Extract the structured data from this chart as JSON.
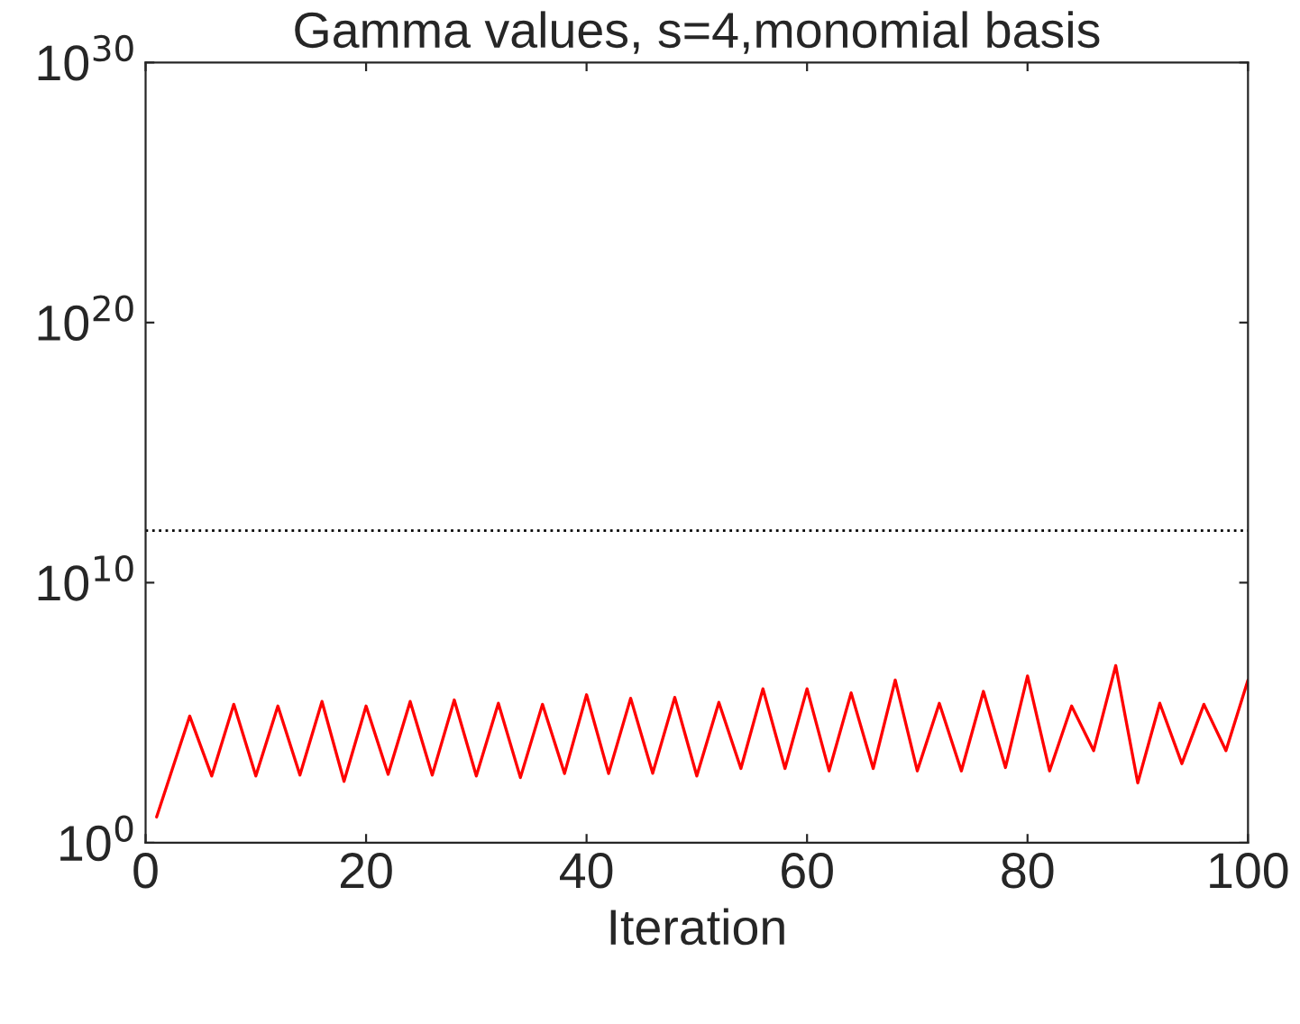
{
  "chart_data": {
    "type": "line",
    "title": "Gamma values, s=4,monomial basis",
    "xlabel": "Iteration",
    "x": [
      1,
      4,
      6,
      8,
      10,
      12,
      14,
      16,
      18,
      20,
      22,
      24,
      26,
      28,
      30,
      32,
      34,
      36,
      38,
      40,
      42,
      44,
      46,
      48,
      50,
      52,
      54,
      56,
      58,
      60,
      62,
      64,
      66,
      68,
      70,
      72,
      74,
      76,
      78,
      80,
      82,
      84,
      86,
      88,
      90,
      92,
      94,
      96,
      98,
      100
    ],
    "series": [
      {
        "color": "#ff0000",
        "values": [
          9.8,
          74000.0,
          370,
          210000.0,
          370,
          180000.0,
          400,
          270000.0,
          230,
          180000.0,
          430,
          270000.0,
          400,
          310000.0,
          370,
          230000.0,
          320,
          210000.0,
          460,
          490000.0,
          460,
          360000.0,
          470,
          390000.0,
          370,
          250000.0,
          720,
          830000.0,
          720,
          830000.0,
          580,
          580000.0,
          720,
          1800000.0,
          580,
          230000.0,
          580,
          660000.0,
          780,
          2600000.0,
          580,
          180000.0,
          3500.0,
          6500000.0,
          200,
          230000.0,
          1100.0,
          210000.0,
          3500.0,
          1800000.0
        ]
      }
    ],
    "log": "y",
    "xlim": [
      0,
      100
    ],
    "xticks": [
      0,
      20,
      40,
      60,
      80,
      100
    ],
    "ylim": [
      1,
      1e+30
    ],
    "yticks": [
      {
        "value": 1,
        "label": "10$^{0}$"
      },
      {
        "value": 10000000000.0,
        "label": "10$^{10}$"
      },
      {
        "value": 1e+20,
        "label": "10$^{20}$"
      },
      {
        "value": 1e+30,
        "label": "10$^{30}$"
      }
    ],
    "ref_lines": [
      {
        "axis": "y",
        "value": 1000000000000.0,
        "color": "#000000",
        "line_style": "dotted"
      }
    ],
    "grid": false,
    "legend": false,
    "marker": "none",
    "line_style": "solid"
  }
}
